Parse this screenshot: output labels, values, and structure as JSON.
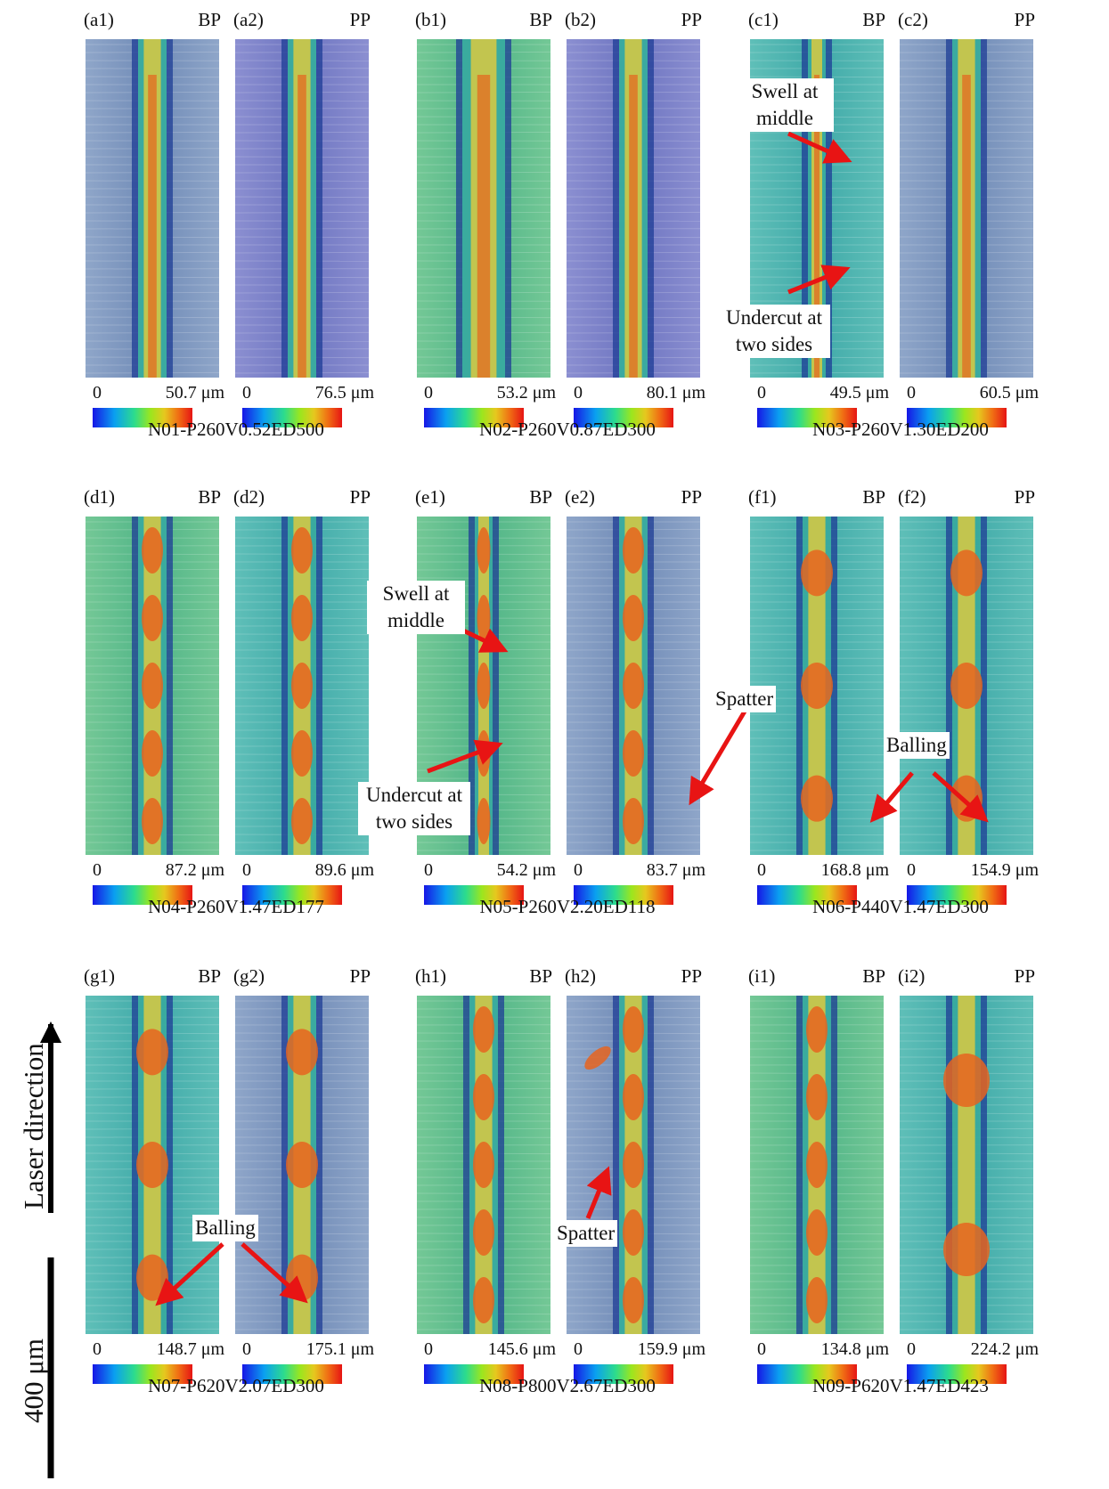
{
  "groups": [
    {
      "sample": "N01-P260V0.52ED500",
      "panels": [
        {
          "label": "(a1)",
          "type": "BP",
          "zero": "0",
          "max": "50.7 μm",
          "bg": "blue-grey",
          "track": "continuous"
        },
        {
          "label": "(a2)",
          "type": "PP",
          "zero": "0",
          "max": "76.5 μm",
          "bg": "violet",
          "track": "continuous"
        }
      ]
    },
    {
      "sample": "N02-P260V0.87ED300",
      "panels": [
        {
          "label": "(b1)",
          "type": "BP",
          "zero": "0",
          "max": "53.2 μm",
          "bg": "green",
          "track": "wide"
        },
        {
          "label": "(b2)",
          "type": "PP",
          "zero": "0",
          "max": "80.1 μm",
          "bg": "violet",
          "track": "irregular"
        }
      ]
    },
    {
      "sample": "N03-P260V1.30ED200",
      "panels": [
        {
          "label": "(c1)",
          "type": "BP",
          "zero": "0",
          "max": "49.5 μm",
          "bg": "teal",
          "track": "thin"
        },
        {
          "label": "(c2)",
          "type": "PP",
          "zero": "0",
          "max": "60.5 μm",
          "bg": "blue-grey",
          "track": "continuous"
        }
      ]
    },
    {
      "sample": "N04-P260V1.47ED177",
      "panels": [
        {
          "label": "(d1)",
          "type": "BP",
          "zero": "0",
          "max": "87.2 μm",
          "bg": "green",
          "track": "beaded"
        },
        {
          "label": "(d2)",
          "type": "PP",
          "zero": "0",
          "max": "89.6 μm",
          "bg": "teal",
          "track": "beaded"
        }
      ]
    },
    {
      "sample": "N05-P260V2.20ED118",
      "panels": [
        {
          "label": "(e1)",
          "type": "BP",
          "zero": "0",
          "max": "54.2 μm",
          "bg": "green",
          "track": "thin-beaded"
        },
        {
          "label": "(e2)",
          "type": "PP",
          "zero": "0",
          "max": "83.7 μm",
          "bg": "blue-grey",
          "track": "broken"
        }
      ]
    },
    {
      "sample": "N06-P440V1.47ED300",
      "panels": [
        {
          "label": "(f1)",
          "type": "BP",
          "zero": "0",
          "max": "168.8 μm",
          "bg": "teal",
          "track": "balled"
        },
        {
          "label": "(f2)",
          "type": "PP",
          "zero": "0",
          "max": "154.9 μm",
          "bg": "teal",
          "track": "balled"
        }
      ]
    },
    {
      "sample": "N07-P620V2.07ED300",
      "panels": [
        {
          "label": "(g1)",
          "type": "BP",
          "zero": "0",
          "max": "148.7 μm",
          "bg": "teal",
          "track": "balled"
        },
        {
          "label": "(g2)",
          "type": "PP",
          "zero": "0",
          "max": "175.1 μm",
          "bg": "blue-grey",
          "track": "balled"
        }
      ]
    },
    {
      "sample": "N08-P800V2.67ED300",
      "panels": [
        {
          "label": "(h1)",
          "type": "BP",
          "zero": "0",
          "max": "145.6 μm",
          "bg": "green",
          "track": "beaded"
        },
        {
          "label": "(h2)",
          "type": "PP",
          "zero": "0",
          "max": "159.9 μm",
          "bg": "blue-grey",
          "track": "spatter"
        }
      ]
    },
    {
      "sample": "N09-P620V1.47ED423",
      "panels": [
        {
          "label": "(i1)",
          "type": "BP",
          "zero": "0",
          "max": "134.8 μm",
          "bg": "green",
          "track": "beaded"
        },
        {
          "label": "(i2)",
          "type": "PP",
          "zero": "0",
          "max": "224.2 μm",
          "bg": "teal",
          "track": "big-balls"
        }
      ]
    }
  ],
  "annotations": {
    "swell_c": "Swell at middle",
    "undercut_c": "Undercut at two sides",
    "swell_e": "Swell at middle",
    "undercut_e": "Undercut at two sides",
    "spatter_e": "Spatter",
    "balling_f": "Balling",
    "balling_g": "Balling",
    "spatter_h": "Spatter"
  },
  "axis": {
    "direction_label": "Laser direction",
    "scale_label": "400 μm"
  },
  "colors": {
    "arrow": "#e81414",
    "track_core": "#e6641e",
    "track_mid": "#d2c846",
    "track_edge": "#1e3c96"
  }
}
